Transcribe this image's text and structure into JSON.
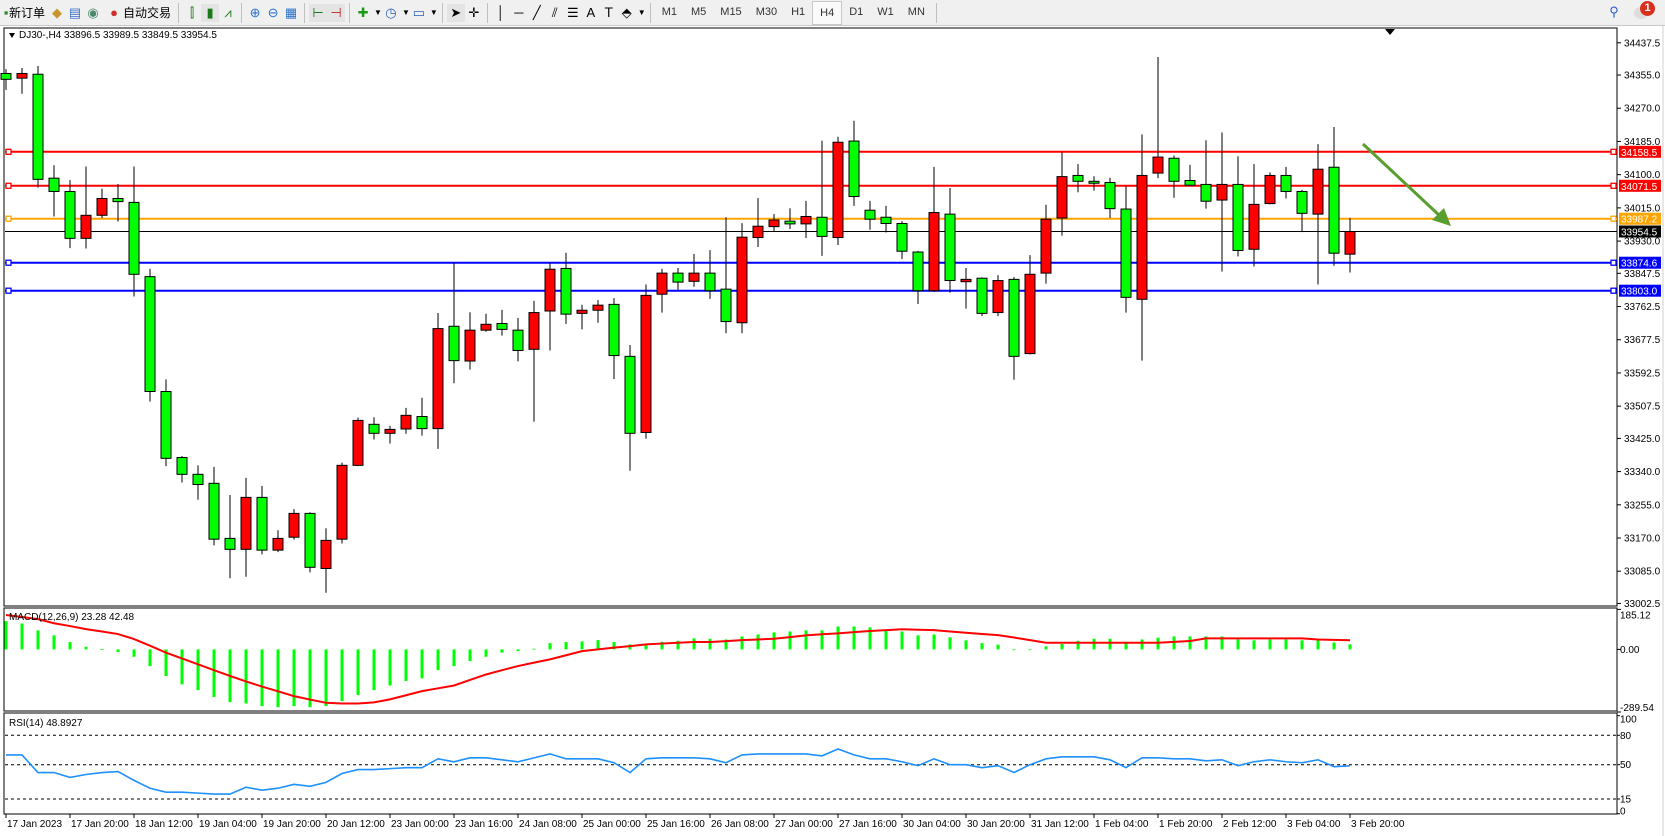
{
  "toolbar": {
    "new_order_label": "新订单",
    "auto_trading_label": "自动交易",
    "icons": [
      "new-order-icon",
      "market-watch-icon",
      "navigator-icon",
      "signals-icon",
      "auto-trading-icon",
      "bar-chart-icon",
      "candlestick-icon",
      "line-chart-icon",
      "zoom-in-icon",
      "zoom-out-icon",
      "tile-windows-icon",
      "auto-scroll-icon",
      "chart-shift-icon",
      "indicators-icon",
      "periods-icon",
      "templates-icon",
      "cursor-icon",
      "crosshair-icon",
      "vertical-line-icon",
      "horizontal-line-icon",
      "trendline-icon",
      "equidistant-channel-icon",
      "fibonacci-icon",
      "text-icon",
      "text-label-icon",
      "arrows-icon"
    ],
    "text_tool": "A",
    "timeframes": [
      "M1",
      "M5",
      "M15",
      "M30",
      "H1",
      "H4",
      "D1",
      "W1",
      "MN"
    ],
    "active_timeframe": "H4",
    "notification_count": "1"
  },
  "chart": {
    "header": "DJ30-,H4  33896.5 33989.5 33849.5 33954.5",
    "symbol": "DJ30-",
    "timeframe": "H4",
    "ohlc_label": {
      "open": 33896.5,
      "high": 33989.5,
      "low": 33849.5,
      "close": 33954.5
    },
    "up_color": "#ff0000",
    "down_color": "#00ff00",
    "current_price": "33954.5",
    "price_axis_labels": [
      "34437.5",
      "34355.0",
      "34270.0",
      "34185.0",
      "34100.0",
      "34015.0",
      "33930.0",
      "33847.5",
      "33762.5",
      "33677.5",
      "33592.5",
      "33507.5",
      "33425.0",
      "33340.0",
      "33255.0",
      "33170.0",
      "33085.0",
      "33002.5"
    ],
    "horizontal_lines": [
      {
        "price": "34158.5",
        "color": "#ff0000"
      },
      {
        "price": "34071.5",
        "color": "#ff0000"
      },
      {
        "price": "33987.2",
        "color": "#ffa500"
      },
      {
        "price": "33874.6",
        "color": "#0000ff"
      },
      {
        "price": "33803.0",
        "color": "#0000ff"
      }
    ],
    "arrow_color": "#5a9e2f",
    "time_labels": [
      "17 Jan 2023",
      "17 Jan 20:00",
      "18 Jan 12:00",
      "19 Jan 04:00",
      "19 Jan 20:00",
      "20 Jan 12:00",
      "23 Jan 00:00",
      "23 Jan 16:00",
      "24 Jan 08:00",
      "25 Jan 00:00",
      "25 Jan 16:00",
      "26 Jan 08:00",
      "27 Jan 00:00",
      "27 Jan 16:00",
      "30 Jan 04:00",
      "30 Jan 20:00",
      "31 Jan 12:00",
      "1 Feb 04:00",
      "1 Feb 20:00",
      "2 Feb 12:00",
      "3 Feb 04:00",
      "3 Feb 20:00"
    ]
  },
  "chart_data": [
    {
      "type": "candlestick",
      "title": "DJ30-,H4",
      "columns": [
        "open",
        "high",
        "low",
        "close"
      ],
      "ylim": [
        33002.5,
        34437.5
      ],
      "candles": [
        [
          34359,
          34370,
          34317,
          34344
        ],
        [
          34347,
          34373,
          34307,
          34359
        ],
        [
          34357,
          34378,
          34067,
          34088
        ],
        [
          34091,
          34124,
          33993,
          34057
        ],
        [
          34057,
          34086,
          33912,
          33937
        ],
        [
          33937,
          34121,
          33911,
          33996
        ],
        [
          33996,
          34064,
          33989,
          34039
        ],
        [
          34039,
          34076,
          33980,
          34031
        ],
        [
          34029,
          34121,
          33788,
          33845
        ],
        [
          33839,
          33859,
          33519,
          33545
        ],
        [
          33545,
          33576,
          33354,
          33374
        ],
        [
          33376,
          33380,
          33312,
          33333
        ],
        [
          33333,
          33356,
          33268,
          33307
        ],
        [
          33310,
          33352,
          33151,
          33167
        ],
        [
          33169,
          33280,
          33067,
          33141
        ],
        [
          33141,
          33324,
          33071,
          33274
        ],
        [
          33274,
          33303,
          33128,
          33139
        ],
        [
          33139,
          33190,
          33134,
          33169
        ],
        [
          33172,
          33244,
          33166,
          33233
        ],
        [
          33233,
          33236,
          33082,
          33095
        ],
        [
          33092,
          33195,
          33030,
          33164
        ],
        [
          33167,
          33363,
          33156,
          33356
        ],
        [
          33356,
          33478,
          33354,
          33471
        ],
        [
          33461,
          33479,
          33422,
          33438
        ],
        [
          33438,
          33457,
          33412,
          33448
        ],
        [
          33449,
          33503,
          33437,
          33484
        ],
        [
          33481,
          33529,
          33432,
          33450
        ],
        [
          33450,
          33746,
          33398,
          33706
        ],
        [
          33712,
          33875,
          33566,
          33624
        ],
        [
          33623,
          33748,
          33601,
          33702
        ],
        [
          33702,
          33744,
          33698,
          33717
        ],
        [
          33719,
          33754,
          33688,
          33704
        ],
        [
          33702,
          33733,
          33622,
          33650
        ],
        [
          33653,
          33777,
          33468,
          33747
        ],
        [
          33751,
          33875,
          33650,
          33858
        ],
        [
          33860,
          33900,
          33718,
          33743
        ],
        [
          33745,
          33767,
          33704,
          33753
        ],
        [
          33753,
          33779,
          33721,
          33766
        ],
        [
          33768,
          33784,
          33577,
          33637
        ],
        [
          33635,
          33664,
          33342,
          33438
        ],
        [
          33440,
          33819,
          33424,
          33791
        ],
        [
          33794,
          33859,
          33747,
          33848
        ],
        [
          33848,
          33861,
          33805,
          33825
        ],
        [
          33827,
          33897,
          33813,
          33848
        ],
        [
          33848,
          33907,
          33782,
          33803
        ],
        [
          33807,
          33991,
          33694,
          33724
        ],
        [
          33721,
          33976,
          33694,
          33940
        ],
        [
          33939,
          34040,
          33915,
          33968
        ],
        [
          33967,
          33999,
          33956,
          33984
        ],
        [
          33981,
          34014,
          33961,
          33974
        ],
        [
          33974,
          34033,
          33938,
          33993
        ],
        [
          33991,
          34187,
          33892,
          33942
        ],
        [
          33939,
          34197,
          33920,
          34183
        ],
        [
          34186,
          34238,
          34020,
          34044
        ],
        [
          34009,
          34033,
          33959,
          33986
        ],
        [
          33991,
          34020,
          33952,
          33975
        ],
        [
          33975,
          33981,
          33884,
          33904
        ],
        [
          33902,
          33905,
          33769,
          33803
        ],
        [
          33803,
          34120,
          33800,
          34003
        ],
        [
          33999,
          34066,
          33798,
          33829
        ],
        [
          33826,
          33861,
          33757,
          33832
        ],
        [
          33835,
          33837,
          33738,
          33745
        ],
        [
          33747,
          33843,
          33738,
          33829
        ],
        [
          33832,
          33838,
          33575,
          33635
        ],
        [
          33642,
          33894,
          33640,
          33845
        ],
        [
          33848,
          34023,
          33821,
          33986
        ],
        [
          33989,
          34157,
          33944,
          34095
        ],
        [
          34098,
          34127,
          34055,
          34083
        ],
        [
          34083,
          34096,
          34059,
          34078
        ],
        [
          34080,
          34092,
          33989,
          34013
        ],
        [
          34012,
          34070,
          33747,
          33786
        ],
        [
          33781,
          34203,
          33624,
          34098
        ],
        [
          34104,
          34401,
          34091,
          34145
        ],
        [
          34142,
          34149,
          34041,
          34083
        ],
        [
          34085,
          34125,
          34072,
          34073
        ],
        [
          34075,
          34188,
          34013,
          34032
        ],
        [
          34035,
          34208,
          33852,
          34075
        ],
        [
          34075,
          34147,
          33891,
          33906
        ],
        [
          33909,
          34127,
          33865,
          34024
        ],
        [
          34026,
          34106,
          34024,
          34098
        ],
        [
          34098,
          34120,
          34039,
          34057
        ],
        [
          34057,
          34061,
          33953,
          34001
        ],
        [
          33999,
          34178,
          33819,
          34114
        ],
        [
          34119,
          34222,
          33867,
          33899
        ],
        [
          33896.5,
          33989.5,
          33849.5,
          33954.5
        ]
      ]
    },
    {
      "type": "bar",
      "title": "MACD(12,26,9) 23.28 42.48",
      "ylim": [
        -289.54,
        185.12
      ],
      "y_ticks": [
        "185.12",
        "0.00",
        "-289.54"
      ],
      "histogram_color": "#00ff00",
      "signal_color": "#ff0000",
      "histogram": [
        131,
        120,
        88,
        65,
        34,
        12,
        1,
        -12,
        -34,
        -77,
        -123,
        -162,
        -188,
        -220,
        -244,
        -250,
        -262,
        -267,
        -262,
        -267,
        -262,
        -239,
        -211,
        -188,
        -167,
        -146,
        -134,
        -96,
        -77,
        -54,
        -34,
        -15,
        -8,
        3,
        29,
        34,
        37,
        43,
        34,
        23,
        26,
        35,
        40,
        51,
        49,
        46,
        60,
        69,
        79,
        83,
        88,
        88,
        106,
        106,
        102,
        91,
        83,
        65,
        69,
        56,
        42,
        29,
        22,
        -2,
        -1,
        14,
        25,
        40,
        49,
        49,
        35,
        46,
        54,
        60,
        60,
        60,
        60,
        46,
        42,
        46,
        46,
        42,
        46,
        32,
        23.28
      ],
      "signal": [
        159,
        150,
        140,
        121,
        108,
        94,
        83,
        71,
        48,
        17,
        -15,
        -42,
        -69,
        -96,
        -123,
        -148,
        -172,
        -194,
        -216,
        -232,
        -247,
        -250,
        -250,
        -245,
        -231,
        -212,
        -193,
        -180,
        -167,
        -141,
        -116,
        -96,
        -77,
        -61,
        -46,
        -27,
        -8,
        0,
        8,
        15,
        23,
        27,
        31,
        34,
        34,
        38,
        43,
        46,
        49,
        57,
        65,
        70,
        74,
        80,
        85,
        89,
        93,
        91,
        89,
        83,
        77,
        71,
        66,
        55,
        43,
        31,
        31,
        31,
        31,
        31,
        31,
        31,
        31,
        35,
        39,
        51,
        51,
        51,
        51,
        51,
        51,
        51,
        46,
        44,
        42.48
      ]
    },
    {
      "type": "line",
      "title": "RSI(14) 48.8927",
      "ylim": [
        0,
        100
      ],
      "y_ticks": [
        "100",
        "80",
        "50",
        "15",
        "0"
      ],
      "levels": [
        80,
        50,
        15
      ],
      "line_color": "#1e90ff",
      "values": [
        60,
        60,
        42,
        42,
        37,
        40,
        42,
        43,
        34,
        26,
        22,
        22,
        21,
        20,
        20,
        27,
        24,
        26,
        30,
        28,
        32,
        41,
        45,
        45,
        46,
        47,
        47,
        56,
        53,
        57,
        57,
        55,
        53,
        57,
        61,
        56,
        56,
        56,
        52,
        42,
        56,
        57,
        57,
        57,
        56,
        52,
        60,
        61,
        61,
        61,
        61,
        59,
        66,
        60,
        56,
        56,
        53,
        49,
        56,
        50,
        50,
        47,
        49,
        42,
        50,
        56,
        58,
        58,
        58,
        55,
        47,
        57,
        57,
        56,
        56,
        54,
        55,
        49,
        53,
        55,
        53,
        52,
        55,
        48,
        48.89
      ]
    }
  ]
}
